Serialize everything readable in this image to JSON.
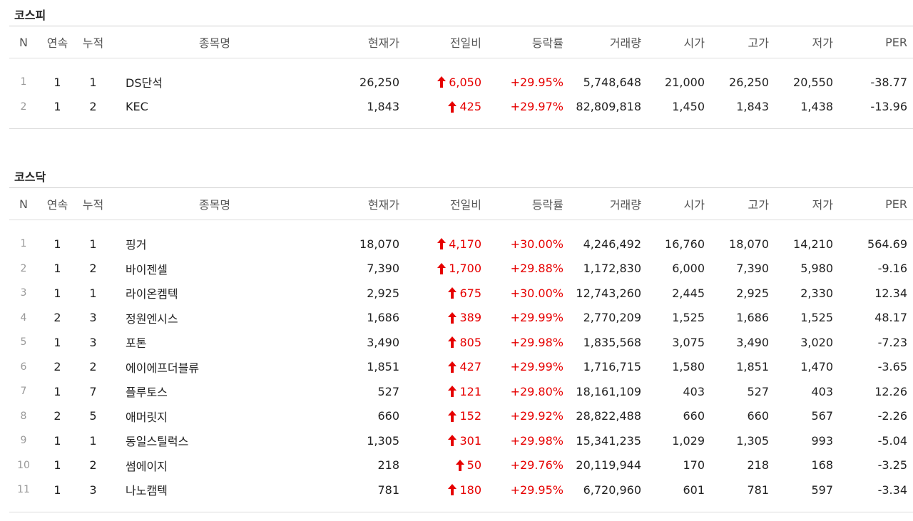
{
  "colors": {
    "up": "#e60000",
    "rule": "#dddddd"
  },
  "columns": [
    "N",
    "연속",
    "누적",
    "종목명",
    "현재가",
    "전일비",
    "등락률",
    "거래량",
    "시가",
    "고가",
    "저가",
    "PER"
  ],
  "sections": [
    {
      "title": "코스피",
      "rows": [
        {
          "n": "1",
          "consecutive": "1",
          "cumulative": "1",
          "name": "DS단석",
          "price": "26,250",
          "change": "6,050",
          "rate": "+29.95%",
          "volume": "5,748,648",
          "open": "21,000",
          "high": "26,250",
          "low": "20,550",
          "per": "-38.77"
        },
        {
          "n": "2",
          "consecutive": "1",
          "cumulative": "2",
          "name": "KEC",
          "price": "1,843",
          "change": "425",
          "rate": "+29.97%",
          "volume": "82,809,818",
          "open": "1,450",
          "high": "1,843",
          "low": "1,438",
          "per": "-13.96"
        }
      ]
    },
    {
      "title": "코스닥",
      "rows": [
        {
          "n": "1",
          "consecutive": "1",
          "cumulative": "1",
          "name": "핑거",
          "price": "18,070",
          "change": "4,170",
          "rate": "+30.00%",
          "volume": "4,246,492",
          "open": "16,760",
          "high": "18,070",
          "low": "14,210",
          "per": "564.69"
        },
        {
          "n": "2",
          "consecutive": "1",
          "cumulative": "2",
          "name": "바이젠셀",
          "price": "7,390",
          "change": "1,700",
          "rate": "+29.88%",
          "volume": "1,172,830",
          "open": "6,000",
          "high": "7,390",
          "low": "5,980",
          "per": "-9.16"
        },
        {
          "n": "3",
          "consecutive": "1",
          "cumulative": "1",
          "name": "라이온켐텍",
          "price": "2,925",
          "change": "675",
          "rate": "+30.00%",
          "volume": "12,743,260",
          "open": "2,445",
          "high": "2,925",
          "low": "2,330",
          "per": "12.34"
        },
        {
          "n": "4",
          "consecutive": "2",
          "cumulative": "3",
          "name": "정원엔시스",
          "price": "1,686",
          "change": "389",
          "rate": "+29.99%",
          "volume": "2,770,209",
          "open": "1,525",
          "high": "1,686",
          "low": "1,525",
          "per": "48.17"
        },
        {
          "n": "5",
          "consecutive": "1",
          "cumulative": "3",
          "name": "포톤",
          "price": "3,490",
          "change": "805",
          "rate": "+29.98%",
          "volume": "1,835,568",
          "open": "3,075",
          "high": "3,490",
          "low": "3,020",
          "per": "-7.23"
        },
        {
          "n": "6",
          "consecutive": "2",
          "cumulative": "2",
          "name": "에이에프더블류",
          "price": "1,851",
          "change": "427",
          "rate": "+29.99%",
          "volume": "1,716,715",
          "open": "1,580",
          "high": "1,851",
          "low": "1,470",
          "per": "-3.65"
        },
        {
          "n": "7",
          "consecutive": "1",
          "cumulative": "7",
          "name": "플루토스",
          "price": "527",
          "change": "121",
          "rate": "+29.80%",
          "volume": "18,161,109",
          "open": "403",
          "high": "527",
          "low": "403",
          "per": "12.26"
        },
        {
          "n": "8",
          "consecutive": "2",
          "cumulative": "5",
          "name": "애머릿지",
          "price": "660",
          "change": "152",
          "rate": "+29.92%",
          "volume": "28,822,488",
          "open": "660",
          "high": "660",
          "low": "567",
          "per": "-2.26"
        },
        {
          "n": "9",
          "consecutive": "1",
          "cumulative": "1",
          "name": "동일스틸럭스",
          "price": "1,305",
          "change": "301",
          "rate": "+29.98%",
          "volume": "15,341,235",
          "open": "1,029",
          "high": "1,305",
          "low": "993",
          "per": "-5.04"
        },
        {
          "n": "10",
          "consecutive": "1",
          "cumulative": "2",
          "name": "썸에이지",
          "price": "218",
          "change": "50",
          "rate": "+29.76%",
          "volume": "20,119,944",
          "open": "170",
          "high": "218",
          "low": "168",
          "per": "-3.25"
        },
        {
          "n": "11",
          "consecutive": "1",
          "cumulative": "3",
          "name": "나노캠텍",
          "price": "781",
          "change": "180",
          "rate": "+29.95%",
          "volume": "6,720,960",
          "open": "601",
          "high": "781",
          "low": "597",
          "per": "-3.34"
        }
      ]
    }
  ]
}
